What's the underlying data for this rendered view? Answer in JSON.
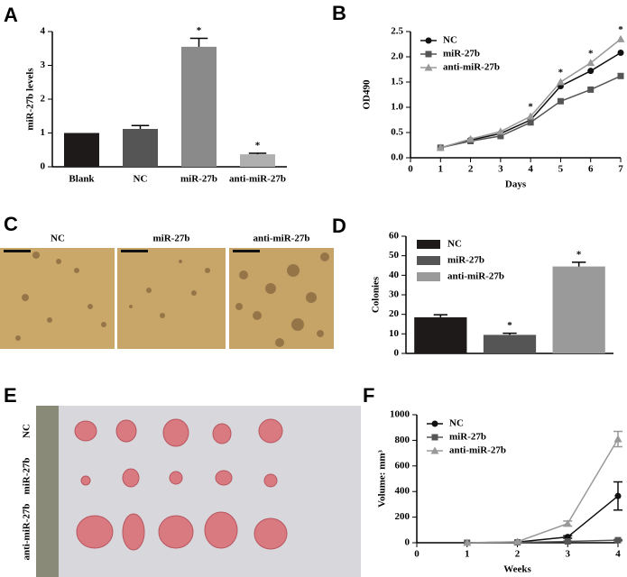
{
  "panels": [
    "A",
    "B",
    "C",
    "D",
    "E",
    "F"
  ],
  "chart_data": [
    {
      "type": "bar",
      "ylabel": "miR-27b levels",
      "categories": [
        "Blank",
        "NC",
        "miR-27b",
        "anti-miR-27b"
      ],
      "values": [
        1.0,
        1.12,
        3.55,
        0.37
      ],
      "errors": [
        0,
        0.1,
        0.25,
        0.03
      ],
      "colors": [
        "#1e1a1a",
        "#555555",
        "#8a8a8a",
        "#b0b0b0"
      ],
      "ylim": [
        0,
        4
      ],
      "yticks": [
        0,
        1,
        2,
        3,
        4
      ],
      "annotations": [
        {
          "x": "miR-27b",
          "text": "*"
        },
        {
          "x": "anti-miR-27b",
          "text": "*"
        }
      ]
    },
    {
      "type": "line",
      "xlabel": "Days",
      "ylabel": "OD490",
      "x": [
        1,
        2,
        3,
        4,
        5,
        6,
        7
      ],
      "xlim": [
        0,
        7
      ],
      "xticks": [
        0,
        1,
        2,
        3,
        4,
        5,
        6,
        7
      ],
      "ylim": [
        0,
        2.5
      ],
      "yticks": [
        {
          "value": 0,
          "label": "0.0"
        },
        0.5,
        {
          "value": 1,
          "label": "1.0"
        },
        1.5,
        {
          "value": 2,
          "label": "2.0"
        },
        2.5
      ],
      "series": [
        {
          "name": "NC",
          "color": "#111111",
          "marker": "circle",
          "values": [
            0.2,
            0.35,
            0.48,
            0.75,
            1.42,
            1.72,
            2.08
          ]
        },
        {
          "name": "miR-27b",
          "color": "#555555",
          "marker": "square",
          "values": [
            0.2,
            0.33,
            0.43,
            0.7,
            1.12,
            1.35,
            1.62
          ]
        },
        {
          "name": "anti-miR-27b",
          "color": "#999999",
          "marker": "triangle",
          "values": [
            0.2,
            0.37,
            0.52,
            0.82,
            1.5,
            1.88,
            2.35
          ]
        }
      ],
      "annotations": [
        {
          "x": 4,
          "text": "*"
        },
        {
          "x": 5,
          "text": "*"
        },
        {
          "x": 6,
          "text": "*"
        },
        {
          "x": 7,
          "text": "*"
        }
      ]
    },
    {
      "type": "bar",
      "ylabel": "Colonies",
      "series": [
        {
          "name": "NC",
          "color": "#1e1a1a",
          "values": [
            18.5
          ],
          "errors": [
            1.3
          ]
        },
        {
          "name": "miR-27b",
          "color": "#555555",
          "values": [
            9.5
          ],
          "errors": [
            0.8
          ]
        },
        {
          "name": "anti-miR-27b",
          "color": "#9a9a9a",
          "values": [
            44.5
          ],
          "errors": [
            2.2
          ]
        }
      ],
      "ylim": [
        0,
        60
      ],
      "yticks": [
        0,
        10,
        20,
        30,
        40,
        50,
        60
      ],
      "annotations": [
        {
          "x": "miR-27b",
          "text": "*"
        },
        {
          "x": "anti-miR-27b",
          "text": "*"
        }
      ]
    },
    {
      "type": "line",
      "xlabel": "Weeks",
      "ylabel": "Volume: mm³",
      "x": [
        1,
        2,
        3,
        4
      ],
      "xlim": [
        0,
        4
      ],
      "xticks": [
        0,
        1,
        2,
        3,
        4
      ],
      "ylim": [
        0,
        1000
      ],
      "yticks": [
        0,
        200,
        400,
        600,
        800,
        1000
      ],
      "series": [
        {
          "name": "NC",
          "color": "#111111",
          "marker": "circle",
          "values": [
            0,
            5,
            45,
            365
          ],
          "errors": [
            0,
            2,
            10,
            110
          ]
        },
        {
          "name": "miR-27b",
          "color": "#555555",
          "marker": "square",
          "values": [
            0,
            3,
            10,
            20
          ],
          "errors": [
            0,
            1,
            3,
            5
          ]
        },
        {
          "name": "anti-miR-27b",
          "color": "#999999",
          "marker": "triangle",
          "values": [
            0,
            8,
            150,
            810
          ],
          "errors": [
            0,
            2,
            20,
            60
          ]
        }
      ]
    }
  ],
  "photo_c": {
    "labels": [
      "NC",
      "miR-27b",
      "anti-miR-27b"
    ]
  },
  "photo_e": {
    "labels": [
      "NC",
      "miR-27b",
      "anti-miR-27b"
    ]
  }
}
